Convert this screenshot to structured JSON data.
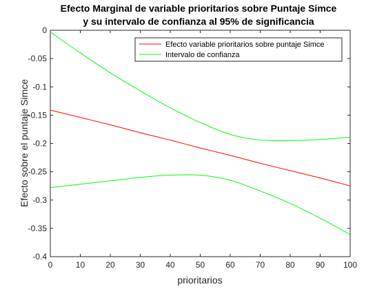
{
  "chart_data": {
    "type": "line",
    "title_lines": [
      "Efecto Marginal de variable prioritarios sobre Puntaje Simce",
      "y su intervalo de confianza al 95% de significancia"
    ],
    "xlabel": "prioritarios",
    "ylabel": "Efecto sobre el puntaje Simce",
    "xlim": [
      0,
      100
    ],
    "ylim": [
      -0.4,
      0
    ],
    "xticks": [
      0,
      10,
      20,
      30,
      40,
      50,
      60,
      70,
      80,
      90,
      100
    ],
    "xtick_labels": [
      "0",
      "10",
      "20",
      "30",
      "40",
      "50",
      "60",
      "70",
      "80",
      "90",
      "100"
    ],
    "yticks": [
      0,
      -0.05,
      -0.1,
      -0.15,
      -0.2,
      -0.25,
      -0.3,
      -0.35,
      -0.4
    ],
    "ytick_labels": [
      "0",
      "-0.05",
      "-0.1",
      "-0.15",
      "-0.2",
      "-0.25",
      "-0.3",
      "-0.35",
      "-0.4"
    ],
    "grid": false,
    "legend_position": "top-right",
    "x": [
      0,
      10,
      20,
      30,
      40,
      50,
      60,
      70,
      80,
      90,
      100
    ],
    "series": [
      {
        "name": "Efecto variable prioritarios sobre puntaje Simce",
        "color": "#ff0000",
        "values": [
          -0.141,
          -0.154,
          -0.167,
          -0.181,
          -0.194,
          -0.208,
          -0.221,
          -0.235,
          -0.248,
          -0.261,
          -0.275
        ]
      },
      {
        "name": "Intervalo de confianza",
        "color": "#00ff00",
        "values": [
          -0.003,
          -0.04,
          -0.075,
          -0.107,
          -0.137,
          -0.163,
          -0.184,
          -0.194,
          -0.195,
          -0.193,
          -0.189
        ]
      },
      {
        "name": "",
        "color": "#00ff00",
        "values": [
          -0.278,
          -0.272,
          -0.266,
          -0.26,
          -0.256,
          -0.256,
          -0.265,
          -0.284,
          -0.306,
          -0.332,
          -0.361
        ]
      }
    ]
  }
}
